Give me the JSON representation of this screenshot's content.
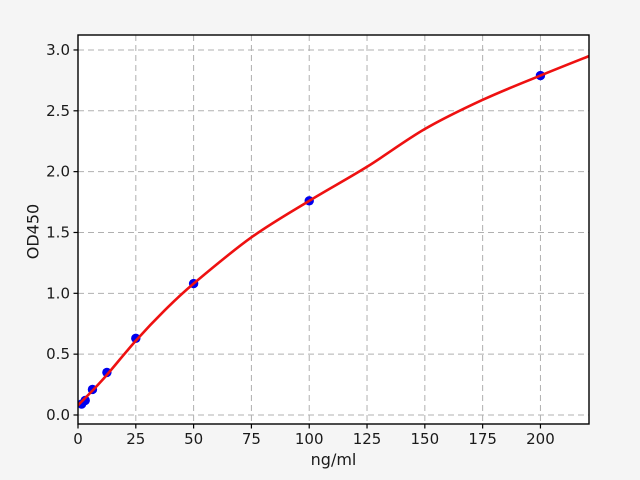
{
  "figure": {
    "background": "#f5f5f5",
    "plot_background": "#ffffff"
  },
  "chart_data": {
    "type": "scatter",
    "title": "",
    "xlabel": "ng/ml",
    "ylabel": "OD450",
    "xlim": [
      0,
      221
    ],
    "ylim": [
      -0.074,
      3.123
    ],
    "grid": true,
    "grid_style": "dashed",
    "grid_color": "#b0b0b0",
    "axis_color": "#000000",
    "tick_label_color": "#1a1a1a",
    "legend": "none",
    "xticks": {
      "values": [
        0,
        25,
        50,
        75,
        100,
        125,
        150,
        175,
        200
      ],
      "labels": [
        "0",
        "25",
        "50",
        "75",
        "100",
        "125",
        "150",
        "175",
        "200"
      ]
    },
    "yticks": {
      "values": [
        0.0,
        0.5,
        1.0,
        1.5,
        2.0,
        2.5,
        3.0
      ],
      "labels": [
        "0.0",
        "0.5",
        "1.0",
        "1.5",
        "2.0",
        "2.5",
        "3.0"
      ]
    },
    "series": [
      {
        "name": "standard-points",
        "kind": "scatter",
        "color": "#0000ee",
        "marker": "circle",
        "marker_radius": 4.7,
        "x": [
          1.5625,
          3.125,
          6.25,
          12.5,
          25,
          50,
          100,
          200
        ],
        "y": [
          0.09,
          0.12,
          0.21,
          0.35,
          0.63,
          1.08,
          1.76,
          2.79
        ]
      },
      {
        "name": "fit-curve",
        "kind": "line",
        "color": "#ee1111",
        "line_width": 2.6,
        "x": [
          0,
          6.25,
          12.5,
          25,
          37.5,
          50,
          75,
          100,
          125,
          150,
          175,
          200,
          221
        ],
        "y": [
          0.08,
          0.2,
          0.33,
          0.61,
          0.86,
          1.08,
          1.46,
          1.76,
          2.04,
          2.35,
          2.59,
          2.79,
          2.95
        ]
      }
    ]
  }
}
